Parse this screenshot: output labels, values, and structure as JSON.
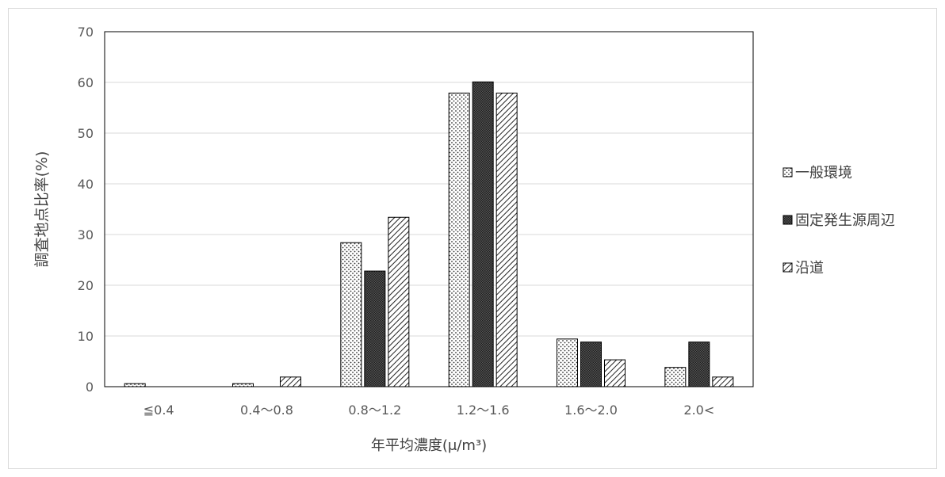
{
  "chart_data": {
    "type": "bar",
    "title": "",
    "xlabel": "年平均濃度(μ/m³)",
    "ylabel": "調査地点比率(%)",
    "ylim": [
      0,
      70
    ],
    "yticks": [
      0,
      10,
      20,
      30,
      40,
      50,
      60,
      70
    ],
    "grid": "horizontal",
    "legend_position": "right",
    "categories": [
      "≦0.4",
      "0.4〜0.8",
      "0.8〜1.2",
      "1.2〜1.6",
      "1.6〜2.0",
      "2.0<"
    ],
    "series": [
      {
        "name": "一般環境",
        "pattern": "dots",
        "values": [
          0.6,
          0.6,
          28.4,
          57.9,
          9.4,
          3.8
        ]
      },
      {
        "name": "固定発生源周辺",
        "pattern": "crosshatch",
        "values": [
          0,
          0,
          22.8,
          60.1,
          8.8,
          8.8
        ]
      },
      {
        "name": "沿道",
        "pattern": "diagonal",
        "values": [
          0,
          1.9,
          33.4,
          57.9,
          5.3,
          1.9
        ]
      }
    ]
  }
}
